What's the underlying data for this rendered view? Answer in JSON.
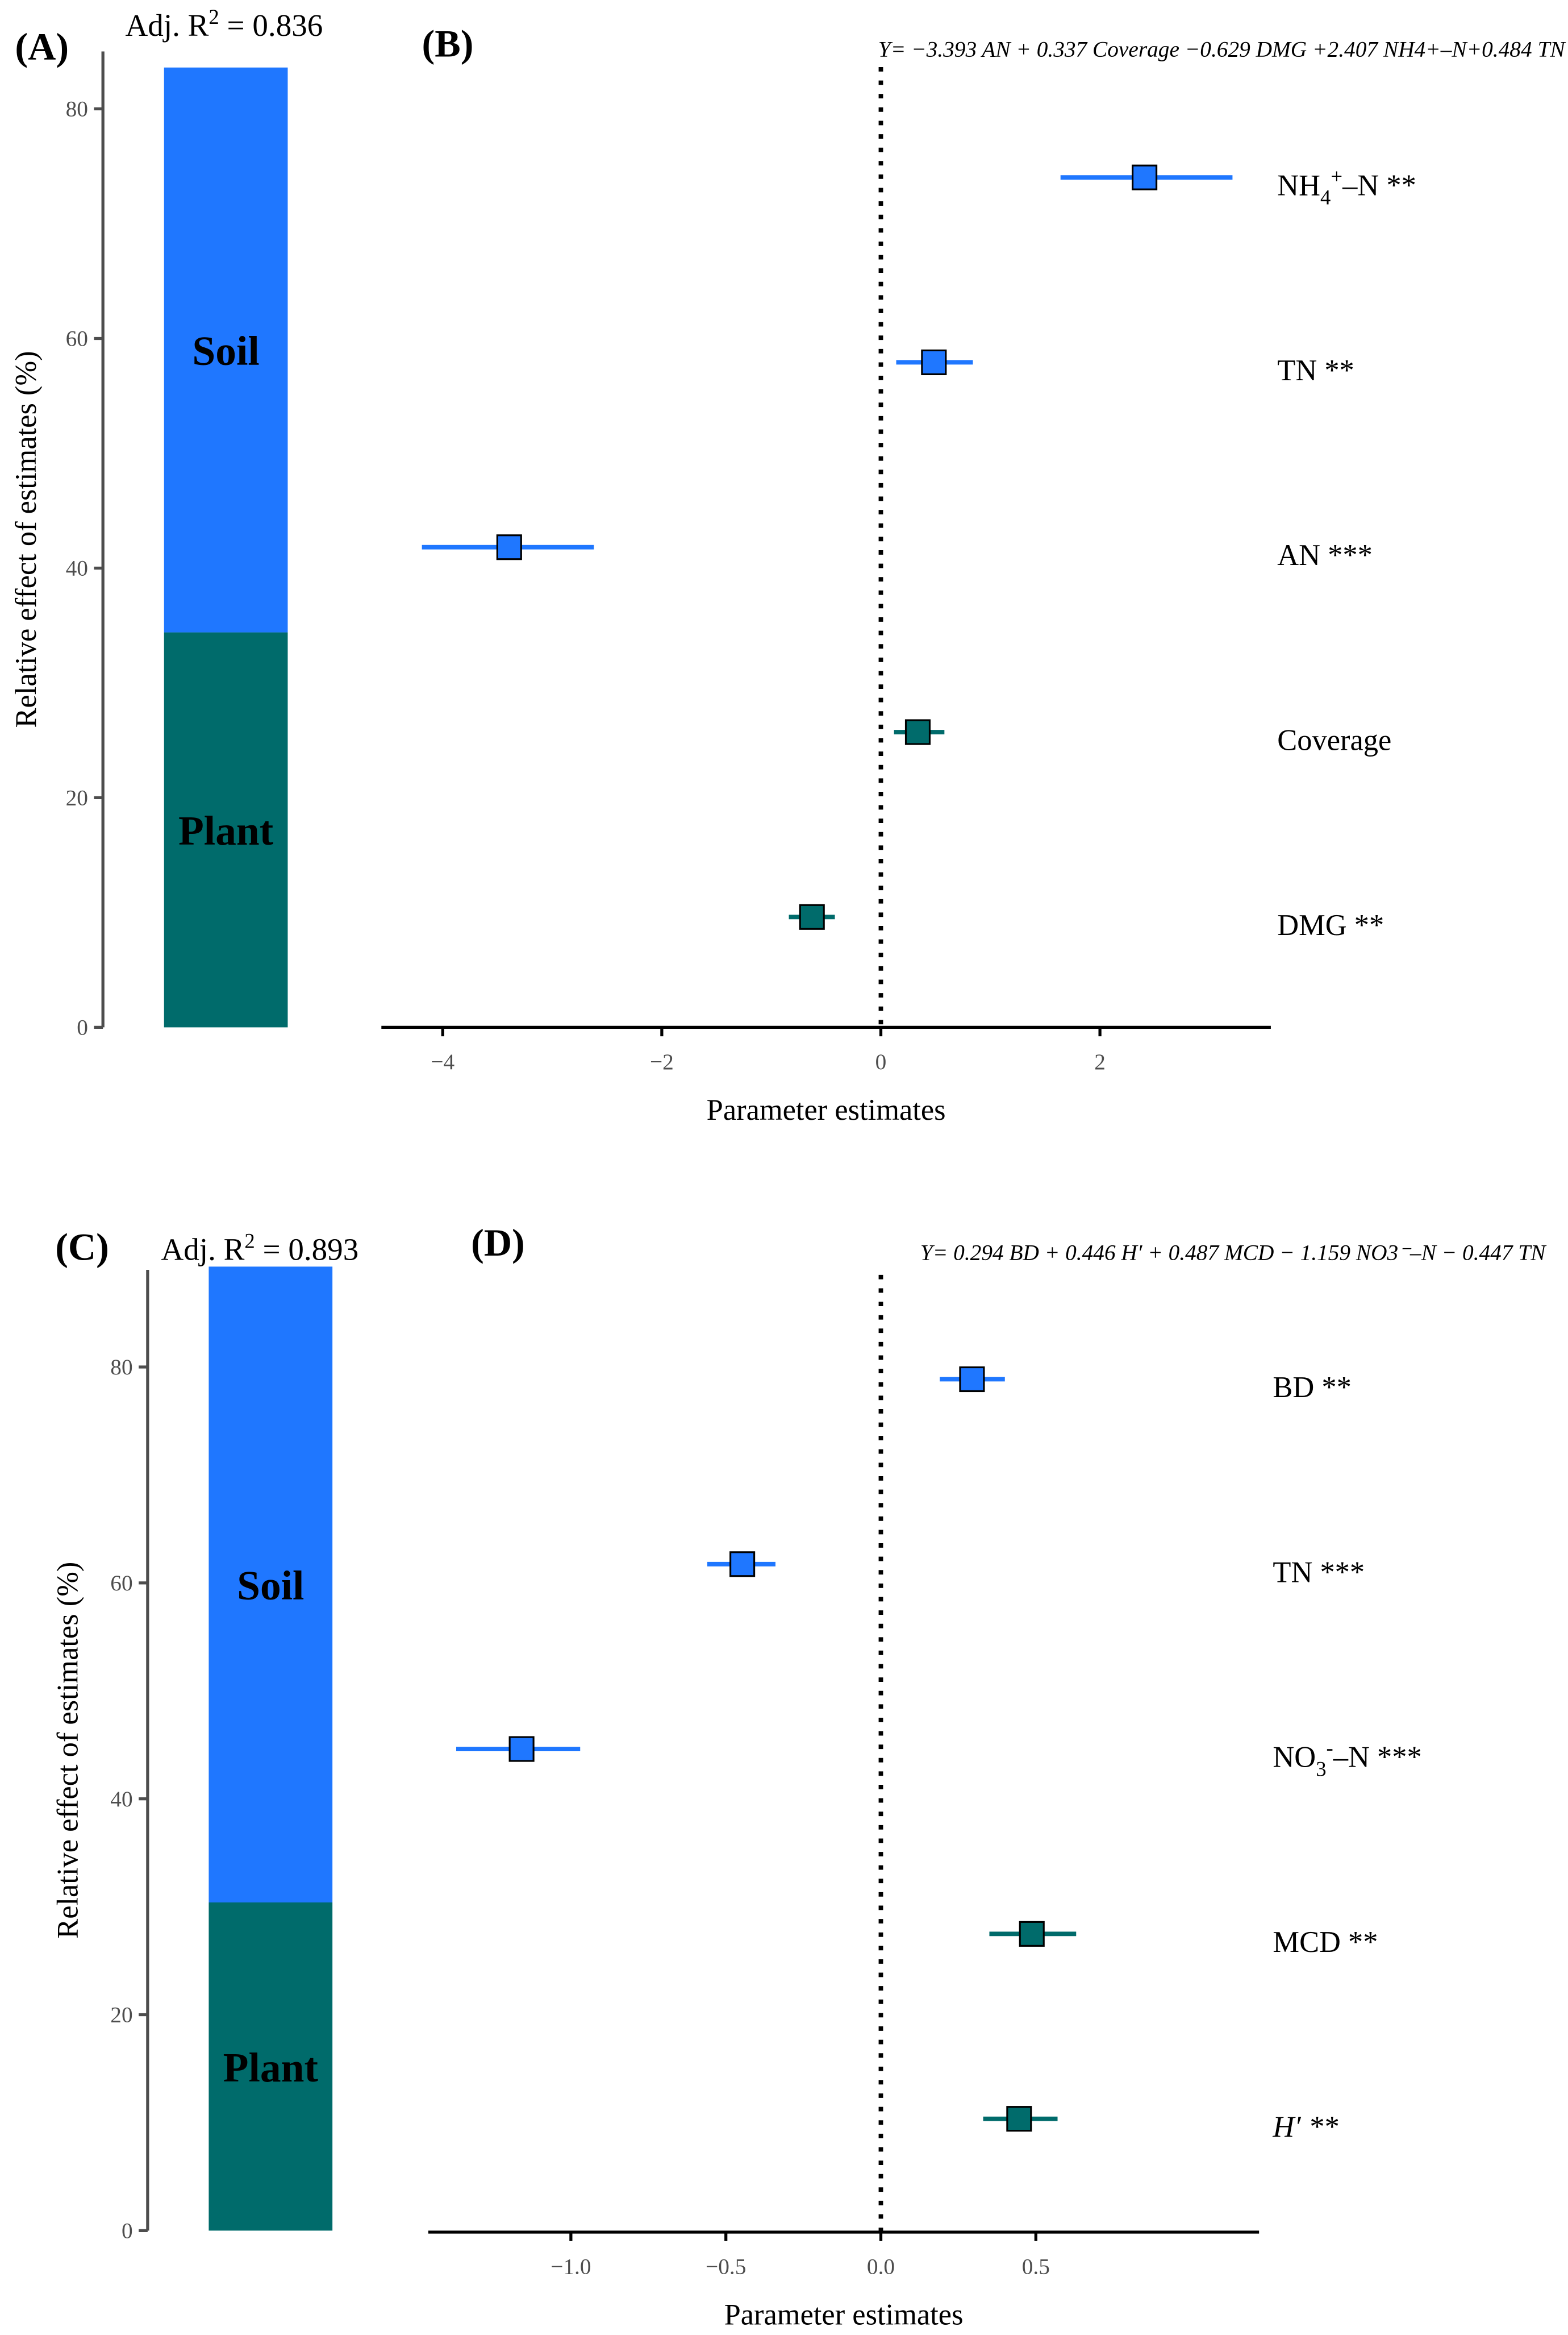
{
  "colors": {
    "soil": "#1F77FF",
    "plant": "#006B6B"
  },
  "chart_data": [
    {
      "type": "bar",
      "panel": "(A)",
      "stacked": true,
      "title": "Adj. R² = 0.836",
      "r2_prefix": "Adj. R",
      "r2_value": " = 0.836",
      "ylabel": "Relative effect of estimates (%)",
      "ylim": [
        0,
        85
      ],
      "yticks": [
        0,
        20,
        40,
        60,
        80
      ],
      "segments": [
        {
          "name": "Plant",
          "value": 34.4,
          "group": "plant"
        },
        {
          "name": "Soil",
          "value": 49.2,
          "group": "soil"
        }
      ]
    },
    {
      "type": "scatter",
      "panel": "(B)",
      "subtype": "coefficient-plot",
      "xlabel": "Parameter estimates",
      "xlim": [
        -4.56,
        3.56
      ],
      "xticks": [
        -4,
        -2,
        0,
        2
      ],
      "tick_labels": [
        "−4",
        "−2",
        "0",
        "2"
      ],
      "equation": "Y= −3.393 AN + 0.337 Coverage −0.629 DMG +2.407 NH4+–N+0.484 TN",
      "points": [
        {
          "label": "NH4+–N **",
          "base": "NH",
          "sub": "4",
          "sup": "+",
          "rest": "–N **",
          "estimate": 2.407,
          "ci": [
            1.64,
            3.21
          ],
          "group": "soil"
        },
        {
          "label": "TN **",
          "base": "TN **",
          "estimate": 0.484,
          "ci": [
            0.14,
            0.84
          ],
          "group": "soil"
        },
        {
          "label": "AN ***",
          "base": "AN ***",
          "estimate": -3.393,
          "ci": [
            -4.19,
            -2.62
          ],
          "group": "soil"
        },
        {
          "label": "Coverage",
          "base": "Coverage",
          "estimate": 0.337,
          "ci": [
            0.12,
            0.58
          ],
          "group": "plant"
        },
        {
          "label": "DMG **",
          "base": "DMG **",
          "estimate": -0.629,
          "ci": [
            -0.84,
            -0.42
          ],
          "group": "plant"
        }
      ]
    },
    {
      "type": "bar",
      "panel": "(C)",
      "stacked": true,
      "title": "Adj. R² = 0.893",
      "r2_prefix": "Adj. R",
      "r2_value": " = 0.893",
      "ylabel": "Relative effect of estimates (%)",
      "ylim": [
        0,
        89
      ],
      "yticks": [
        0,
        20,
        40,
        60,
        80
      ],
      "segments": [
        {
          "name": "Plant",
          "value": 30.4,
          "group": "plant"
        },
        {
          "name": "Soil",
          "value": 58.9,
          "group": "soil"
        }
      ]
    },
    {
      "type": "scatter",
      "panel": "(D)",
      "subtype": "coefficient-plot",
      "xlabel": "Parameter estimates",
      "xlim": [
        -1.46,
        1.22
      ],
      "xticks": [
        -1.0,
        -0.5,
        0.0,
        0.5
      ],
      "tick_labels": [
        "−1.0",
        "−0.5",
        "0.0",
        "0.5"
      ],
      "equation": "Y= 0.294 BD + 0.446 H′ + 0.487 MCD − 1.159 NO3⁻–N − 0.447 TN",
      "points": [
        {
          "label": "BD **",
          "base": "BD **",
          "estimate": 0.294,
          "ci": [
            0.19,
            0.4
          ],
          "group": "soil"
        },
        {
          "label": "TN ***",
          "base": "TN ***",
          "estimate": -0.447,
          "ci": [
            -0.56,
            -0.34
          ],
          "group": "soil"
        },
        {
          "label": "NO3-–N ***",
          "base": "NO",
          "sub": "3",
          "sup": "-",
          "rest": "–N ***",
          "estimate": -1.159,
          "ci": [
            -1.37,
            -0.97
          ],
          "group": "soil"
        },
        {
          "label": "MCD **",
          "base": "MCD **",
          "estimate": 0.487,
          "ci": [
            0.35,
            0.63
          ],
          "group": "plant"
        },
        {
          "label": "H′ **",
          "base": "H′ **",
          "italic": true,
          "estimate": 0.446,
          "ci": [
            0.33,
            0.57
          ],
          "group": "plant"
        }
      ]
    }
  ]
}
